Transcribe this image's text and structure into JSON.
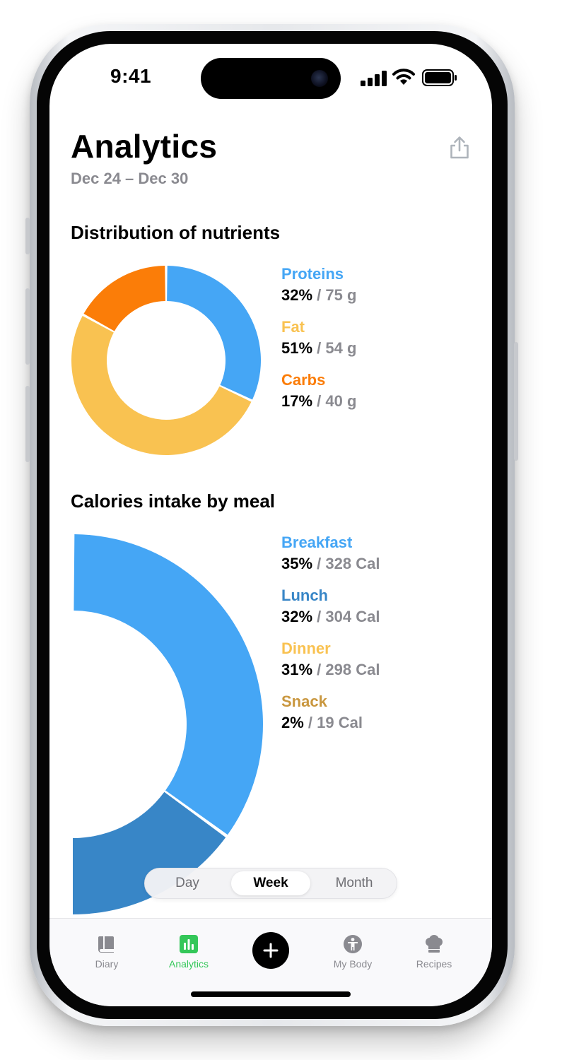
{
  "status_bar": {
    "time": "9:41"
  },
  "header": {
    "title": "Analytics",
    "date_range": "Dec 24 – Dec 30"
  },
  "nutrients": {
    "title": "Distribution of nutrients",
    "items": [
      {
        "name": "Proteins",
        "percent": "32%",
        "amount": "75 g",
        "color": "#45a6f5"
      },
      {
        "name": "Fat",
        "percent": "51%",
        "amount": "54 g",
        "color": "#f9c251"
      },
      {
        "name": "Carbs",
        "percent": "17%",
        "amount": "40 g",
        "color": "#fb7d08"
      }
    ]
  },
  "meals": {
    "title": "Calories intake by meal",
    "items": [
      {
        "name": "Breakfast",
        "percent": "35%",
        "amount": "328 Cal",
        "color": "#45a6f5"
      },
      {
        "name": "Lunch",
        "percent": "32%",
        "amount": "304 Cal",
        "color": "#3886c7"
      },
      {
        "name": "Dinner",
        "percent": "31%",
        "amount": "298 Cal",
        "color": "#f9c251"
      },
      {
        "name": "Snack",
        "percent": "2%",
        "amount": "19 Cal",
        "color": "#c9973f"
      }
    ]
  },
  "chart_data": [
    {
      "type": "pie",
      "categories": [
        "Proteins",
        "Fat",
        "Carbs"
      ],
      "values": [
        32,
        51,
        17
      ],
      "amounts": [
        "75 g",
        "54 g",
        "40 g"
      ],
      "colors": [
        "#45a6f5",
        "#f9c251",
        "#fb7d08"
      ],
      "title": "Distribution of nutrients",
      "legend": "right"
    },
    {
      "type": "pie",
      "categories": [
        "Breakfast",
        "Lunch",
        "Dinner",
        "Snack"
      ],
      "values": [
        35,
        32,
        31,
        2
      ],
      "amounts": [
        "328 Cal",
        "304 Cal",
        "298 Cal",
        "19 Cal"
      ],
      "colors": [
        "#45a6f5",
        "#3886c7",
        "#f9c251",
        "#c9973f"
      ],
      "title": "Calories intake by meal",
      "legend": "right"
    }
  ],
  "period_selector": {
    "options": [
      "Day",
      "Week",
      "Month"
    ],
    "selected": "Week"
  },
  "tab_bar": {
    "items": [
      {
        "label": "Diary",
        "icon": "book-icon"
      },
      {
        "label": "Analytics",
        "icon": "bar-chart-icon"
      },
      {
        "label": "My Body",
        "icon": "person-icon"
      },
      {
        "label": "Recipes",
        "icon": "chef-hat-icon"
      }
    ],
    "active": "Analytics",
    "center_action": {
      "icon": "plus-icon",
      "color": "#000000"
    },
    "active_color": "#34c759"
  }
}
